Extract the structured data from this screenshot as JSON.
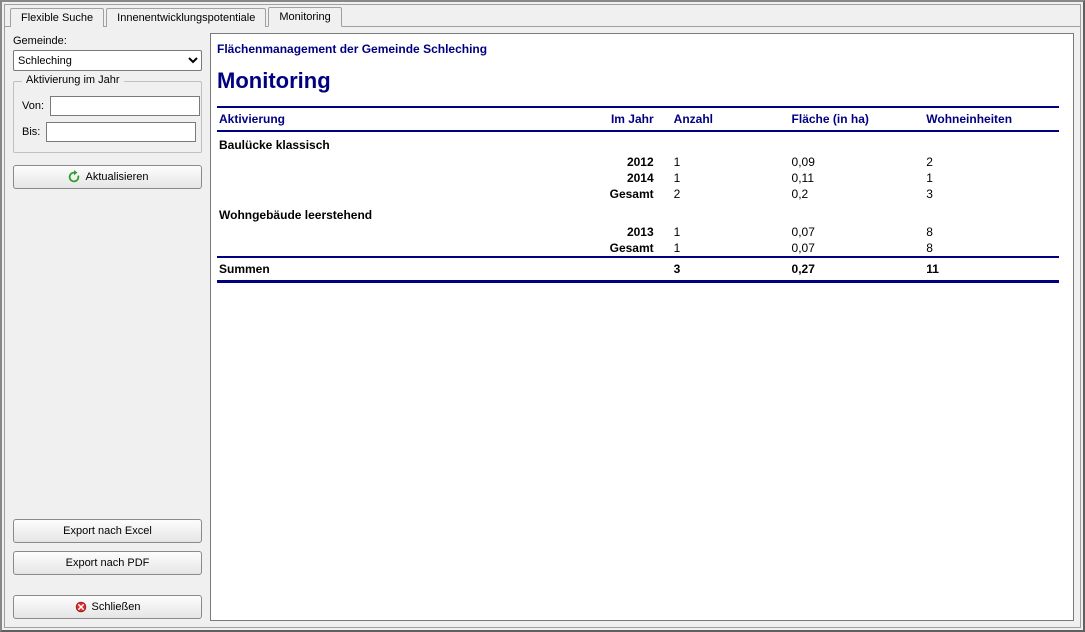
{
  "tabs": {
    "items": [
      {
        "label": "Flexible Suche",
        "active": false
      },
      {
        "label": "Innenentwicklungspotentiale",
        "active": false
      },
      {
        "label": "Monitoring",
        "active": true
      }
    ]
  },
  "sidebar": {
    "gemeinde_label": "Gemeinde:",
    "gemeinde_value": "Schleching",
    "fieldset_legend": "Aktivierung im Jahr",
    "von_label": "Von:",
    "von_value": "",
    "bis_label": "Bis:",
    "bis_value": "",
    "refresh_label": "Aktualisieren",
    "export_excel_label": "Export nach Excel",
    "export_pdf_label": "Export nach PDF",
    "close_label": "Schließen"
  },
  "report": {
    "title": "Flächenmanagement der Gemeinde Schleching",
    "heading": "Monitoring",
    "columns": {
      "activation": "Aktivierung",
      "year": "Im Jahr",
      "count": "Anzahl",
      "area": "Fläche (in ha)",
      "units": "Wohneinheiten"
    },
    "groups": [
      {
        "name": "Baulücke klassisch",
        "rows": [
          {
            "year": "2012",
            "count": "1",
            "area": "0,09",
            "units": "2"
          },
          {
            "year": "2014",
            "count": "1",
            "area": "0,11",
            "units": "1"
          }
        ],
        "total": {
          "label": "Gesamt",
          "count": "2",
          "area": "0,2",
          "units": "3"
        }
      },
      {
        "name": "Wohngebäude leerstehend",
        "rows": [
          {
            "year": "2013",
            "count": "1",
            "area": "0,07",
            "units": "8"
          }
        ],
        "total": {
          "label": "Gesamt",
          "count": "1",
          "area": "0,07",
          "units": "8"
        }
      }
    ],
    "totals": {
      "label": "Summen",
      "count": "3",
      "area": "0,27",
      "units": "11"
    }
  },
  "colors": {
    "navy": "#000080",
    "panel_bg": "#f0f0f0",
    "border": "#7a7a7a"
  }
}
